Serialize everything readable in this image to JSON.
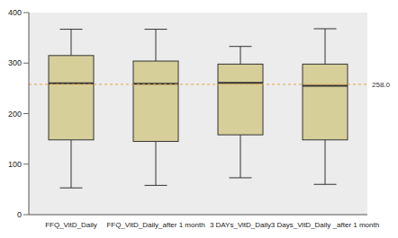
{
  "chart_data": {
    "type": "box",
    "categories": [
      "FFQ_VitD_Daily",
      "FFQ_VitD_Daily_after 1 month",
      "3 DAYs_VitD_Daily",
      "3 Days_VitD_Daily _after 1 month"
    ],
    "min": [
      53,
      58,
      73,
      60
    ],
    "q1": [
      148,
      145,
      158,
      148
    ],
    "median": [
      260,
      259,
      261,
      255
    ],
    "q3": [
      315,
      304,
      298,
      298
    ],
    "max": [
      367,
      367,
      333,
      368
    ],
    "color": "#d6cf9a",
    "ylim": [
      0,
      400
    ],
    "yticks": [
      0,
      100,
      200,
      300,
      400
    ],
    "grid": false,
    "reference_line": {
      "value": 258,
      "label": "258.0"
    }
  }
}
